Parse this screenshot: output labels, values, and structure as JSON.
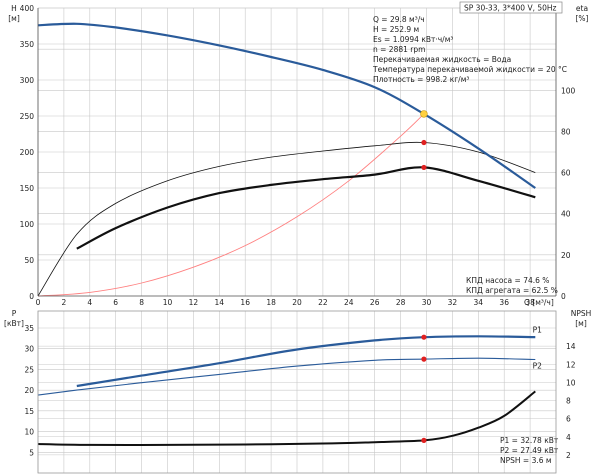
{
  "header": {
    "pump": "SP 30-33, 3*400 V, 50Hz"
  },
  "info_lines": [
    "Q = 29.8 м³/ч",
    "H = 252.9 м",
    "Es = 1.0994 кВт·ч/м³",
    "n = 2881 rpm",
    "Перекачиваемая жидкость = Вода",
    "Температура перекачиваемой жидкости = 20 °C",
    "Плотность = 998.2 кг/м³"
  ],
  "eff_lines": [
    "КПД насоса = 74.6 %",
    "КПД агрегата = 62.5 %"
  ],
  "bottom_info_lines": [
    "P1 = 32.78 кВт",
    "P2 = 27.49 кВт",
    "NPSH = 3.6 м"
  ],
  "colors": {
    "head": "#2a5b9a",
    "power": "#2a5b9a",
    "efficiency": "#111111",
    "system": "#ff8080",
    "marker": "#e02020",
    "duty_point": "#ffd040"
  },
  "chart_data": [
    {
      "type": "line",
      "xlabel": "Q [м³/ч]",
      "ylabel_left": [
        "H",
        "[м]"
      ],
      "ylabel_right": [
        "eta",
        "[%]"
      ],
      "xlim": [
        0,
        40
      ],
      "ylim": [
        0,
        400
      ],
      "ylim_right": [
        0,
        140
      ],
      "x_ticks": [
        0,
        2,
        4,
        6,
        8,
        10,
        12,
        14,
        16,
        18,
        20,
        22,
        24,
        26,
        28,
        30,
        32,
        34,
        36,
        38
      ],
      "y_ticks": [
        0,
        50,
        100,
        150,
        200,
        250,
        300,
        350,
        400
      ],
      "y_ticks_right": [
        0,
        20,
        40,
        60,
        80,
        100
      ],
      "grid": true,
      "series": [
        {
          "id": "H",
          "axis": "left",
          "x": [
            0,
            3,
            6,
            10,
            14,
            18,
            22,
            26,
            29.8,
            34,
            38.4
          ],
          "y": [
            376,
            378,
            373,
            362,
            348,
            332,
            314,
            290,
            252.9,
            205,
            150
          ]
        },
        {
          "id": "eta_pump",
          "axis": "right",
          "x": [
            0,
            3,
            6,
            10,
            14,
            18,
            22,
            26,
            29.8,
            34,
            38.4
          ],
          "y": [
            0,
            30,
            45,
            56,
            63,
            67.5,
            70.5,
            73,
            74.6,
            70,
            60
          ]
        },
        {
          "id": "eta_unit",
          "axis": "right",
          "x": [
            3,
            6,
            10,
            14,
            18,
            22,
            26,
            29.8,
            34,
            38.4
          ],
          "y": [
            23,
            33,
            43,
            50,
            54,
            56.8,
            59,
            62.5,
            56,
            48
          ]
        },
        {
          "id": "system",
          "axis": "left",
          "x": [
            0,
            4,
            8,
            12,
            16,
            20,
            24,
            28,
            29.8
          ],
          "y": [
            0,
            5,
            18,
            40,
            70,
            110,
            160,
            222,
            252.9
          ]
        }
      ],
      "points": [
        {
          "series": "H",
          "x": 29.8,
          "y": 252.9
        },
        {
          "series": "eta_pump",
          "x": 29.8,
          "y": 74.6
        },
        {
          "series": "eta_unit",
          "x": 29.8,
          "y": 62.5
        }
      ]
    },
    {
      "type": "line",
      "ylabel_left": [
        "P",
        "[кВт]"
      ],
      "ylabel_right": [
        "NPSH",
        "[м]"
      ],
      "xlim": [
        0,
        40
      ],
      "ylim": [
        0,
        35
      ],
      "ylim_right": [
        0,
        16
      ],
      "y_ticks": [
        5,
        10,
        15,
        20,
        25,
        30,
        35
      ],
      "y_ticks_right": [
        2,
        4,
        6,
        8,
        10,
        12,
        14
      ],
      "grid": true,
      "series": [
        {
          "name": "P1",
          "axis": "left",
          "x": [
            3,
            8,
            14,
            20,
            26,
            29.8,
            34,
            38.4
          ],
          "y": [
            21,
            23.5,
            26.5,
            29.8,
            32,
            32.78,
            33,
            32.8
          ]
        },
        {
          "name": "P2",
          "axis": "left",
          "x": [
            0,
            3,
            8,
            14,
            20,
            26,
            29.8,
            34,
            38.4
          ],
          "y": [
            18.8,
            20,
            21.8,
            23.8,
            25.8,
            27.2,
            27.49,
            27.7,
            27.4
          ]
        },
        {
          "id": "NPSH",
          "axis": "right",
          "x": [
            0,
            4,
            10,
            16,
            22,
            26,
            29.8,
            32,
            34,
            36,
            38.4
          ],
          "y": [
            3.2,
            3.1,
            3.1,
            3.15,
            3.25,
            3.4,
            3.6,
            4.1,
            5.0,
            6.3,
            9.0
          ]
        }
      ],
      "points": [
        {
          "series": "P1",
          "x": 29.8,
          "y": 32.78
        },
        {
          "series": "P2",
          "x": 29.8,
          "y": 27.49
        },
        {
          "series": "NPSH",
          "x": 29.8,
          "y": 3.6
        }
      ]
    }
  ]
}
